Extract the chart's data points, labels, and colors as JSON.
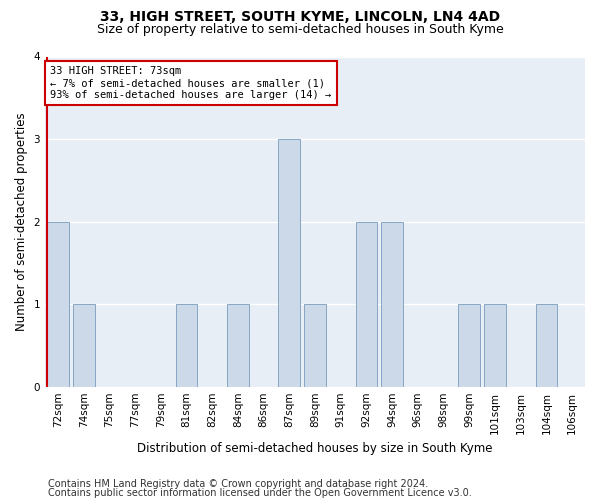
{
  "title": "33, HIGH STREET, SOUTH KYME, LINCOLN, LN4 4AD",
  "subtitle": "Size of property relative to semi-detached houses in South Kyme",
  "xlabel": "Distribution of semi-detached houses by size in South Kyme",
  "ylabel": "Number of semi-detached properties",
  "categories": [
    "72sqm",
    "74sqm",
    "75sqm",
    "77sqm",
    "79sqm",
    "81sqm",
    "82sqm",
    "84sqm",
    "86sqm",
    "87sqm",
    "89sqm",
    "91sqm",
    "92sqm",
    "94sqm",
    "96sqm",
    "98sqm",
    "99sqm",
    "101sqm",
    "103sqm",
    "104sqm",
    "106sqm"
  ],
  "values": [
    2,
    1,
    0,
    0,
    0,
    1,
    0,
    1,
    0,
    3,
    1,
    0,
    2,
    2,
    0,
    0,
    1,
    1,
    0,
    1,
    0
  ],
  "highlight_index": 0,
  "bar_color": "#ccd9e8",
  "bar_edge_color": "#7a9cbd",
  "highlight_line_color": "#cc0000",
  "annotation_text": "33 HIGH STREET: 73sqm\n← 7% of semi-detached houses are smaller (1)\n93% of semi-detached houses are larger (14) →",
  "annotation_box_color": "#ffffff",
  "annotation_box_edge": "#cc0000",
  "ylim": [
    0,
    4
  ],
  "yticks": [
    0,
    1,
    2,
    3,
    4
  ],
  "footer1": "Contains HM Land Registry data © Crown copyright and database right 2024.",
  "footer2": "Contains public sector information licensed under the Open Government Licence v3.0.",
  "bg_color": "#ffffff",
  "plot_bg_color": "#e8eef5",
  "grid_color": "#ffffff",
  "title_fontsize": 10,
  "subtitle_fontsize": 9,
  "axis_label_fontsize": 8.5,
  "tick_fontsize": 7.5,
  "annotation_fontsize": 7.5,
  "footer_fontsize": 7
}
